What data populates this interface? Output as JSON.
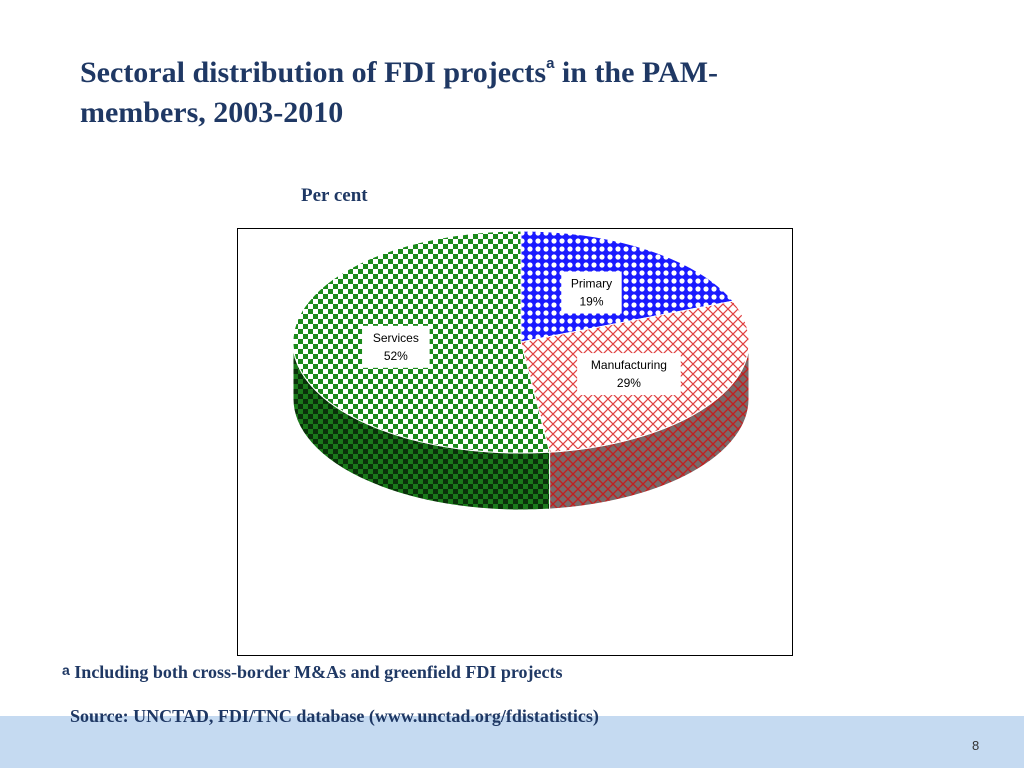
{
  "title": {
    "main": "Sectoral distribution of FDI projects",
    "sup": "a",
    "rest": " in the PAM-members, 2003-2010"
  },
  "subtitle": "Per cent",
  "footnote": {
    "mark": "a",
    "text": " Including both cross-border M&As and greenfield FDI projects"
  },
  "source": "Source: UNCTAD, FDI/TNC database (www.unctad.org/fdistatistics)",
  "page_number": "8",
  "colors": {
    "title": "#1f3864",
    "primary": "#1a1aff",
    "manufacturing": "#e04040",
    "services": "#1a8a1a",
    "band": "#c5daf1"
  },
  "chart_data": {
    "type": "pie",
    "style": "3d-patterned",
    "title": "",
    "slices": [
      {
        "label": "Primary",
        "value": 19,
        "display": "19%"
      },
      {
        "label": "Manufacturing",
        "value": 29,
        "display": "29%"
      },
      {
        "label": "Services",
        "value": 52,
        "display": "52%"
      }
    ]
  }
}
